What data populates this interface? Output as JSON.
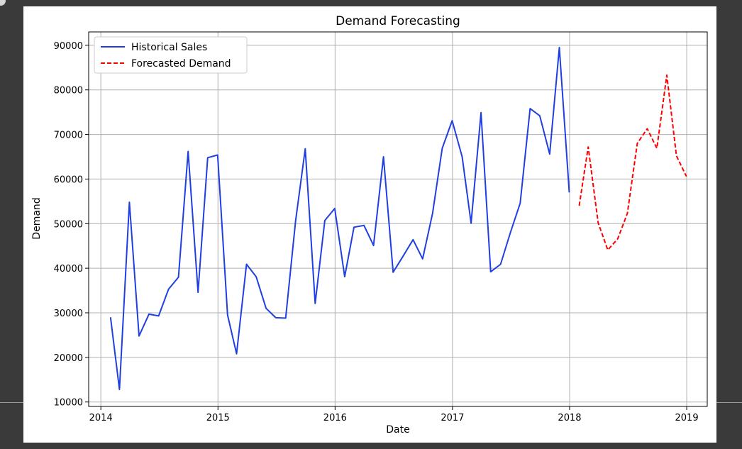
{
  "chart_data": {
    "type": "line",
    "title": "Demand Forecasting",
    "xlabel": "Date",
    "ylabel": "Demand",
    "xlim": [
      "2013-11-24",
      "2019-03-06"
    ],
    "ylim": [
      9000,
      93000
    ],
    "grid": true,
    "legend_position": "upper-left",
    "x_ticks": [
      {
        "date": "2014-01-01",
        "label": "2014"
      },
      {
        "date": "2015-01-01",
        "label": "2015"
      },
      {
        "date": "2016-01-01",
        "label": "2016"
      },
      {
        "date": "2017-01-01",
        "label": "2017"
      },
      {
        "date": "2018-01-01",
        "label": "2018"
      },
      {
        "date": "2019-01-01",
        "label": "2019"
      }
    ],
    "y_ticks": [
      {
        "value": 10000,
        "label": "10000"
      },
      {
        "value": 20000,
        "label": "20000"
      },
      {
        "value": 30000,
        "label": "30000"
      },
      {
        "value": 40000,
        "label": "40000"
      },
      {
        "value": 50000,
        "label": "50000"
      },
      {
        "value": 60000,
        "label": "60000"
      },
      {
        "value": 70000,
        "label": "70000"
      },
      {
        "value": 80000,
        "label": "80000"
      },
      {
        "value": 90000,
        "label": "90000"
      }
    ],
    "series": [
      {
        "name": "Historical Sales",
        "color": "#1f3fe0",
        "style": "solid",
        "points": [
          [
            "2014-01-31",
            29000
          ],
          [
            "2014-02-28",
            12800
          ],
          [
            "2014-03-31",
            54800
          ],
          [
            "2014-04-30",
            24800
          ],
          [
            "2014-05-31",
            29700
          ],
          [
            "2014-06-30",
            29300
          ],
          [
            "2014-07-31",
            35300
          ],
          [
            "2014-08-31",
            38000
          ],
          [
            "2014-09-30",
            66200
          ],
          [
            "2014-10-31",
            34600
          ],
          [
            "2014-11-30",
            64800
          ],
          [
            "2014-12-31",
            65400
          ],
          [
            "2015-01-31",
            29500
          ],
          [
            "2015-02-28",
            20800
          ],
          [
            "2015-03-31",
            40900
          ],
          [
            "2015-04-30",
            38100
          ],
          [
            "2015-05-31",
            31000
          ],
          [
            "2015-06-30",
            28900
          ],
          [
            "2015-07-31",
            28800
          ],
          [
            "2015-08-31",
            50600
          ],
          [
            "2015-09-30",
            66800
          ],
          [
            "2015-10-31",
            32100
          ],
          [
            "2015-11-30",
            50700
          ],
          [
            "2015-12-31",
            53400
          ],
          [
            "2016-01-31",
            38100
          ],
          [
            "2016-02-29",
            49200
          ],
          [
            "2016-03-31",
            49600
          ],
          [
            "2016-04-30",
            45100
          ],
          [
            "2016-05-31",
            65000
          ],
          [
            "2016-06-30",
            39100
          ],
          [
            "2016-07-31",
            42700
          ],
          [
            "2016-08-31",
            46400
          ],
          [
            "2016-09-30",
            42100
          ],
          [
            "2016-10-31",
            52300
          ],
          [
            "2016-11-30",
            66900
          ],
          [
            "2016-12-31",
            73100
          ],
          [
            "2017-01-31",
            65000
          ],
          [
            "2017-02-28",
            50100
          ],
          [
            "2017-03-31",
            74900
          ],
          [
            "2017-04-30",
            39200
          ],
          [
            "2017-05-31",
            40900
          ],
          [
            "2017-06-30",
            47900
          ],
          [
            "2017-07-31",
            54600
          ],
          [
            "2017-08-31",
            75800
          ],
          [
            "2017-09-30",
            74200
          ],
          [
            "2017-10-31",
            65600
          ],
          [
            "2017-11-30",
            89500
          ],
          [
            "2017-12-31",
            57000
          ]
        ]
      },
      {
        "name": "Forecasted Demand",
        "color": "#ff0000",
        "style": "dashed",
        "points": [
          [
            "2018-01-31",
            54000
          ],
          [
            "2018-02-28",
            67200
          ],
          [
            "2018-03-31",
            50200
          ],
          [
            "2018-04-30",
            44100
          ],
          [
            "2018-05-31",
            46600
          ],
          [
            "2018-06-30",
            52300
          ],
          [
            "2018-07-31",
            68000
          ],
          [
            "2018-08-31",
            71300
          ],
          [
            "2018-09-30",
            66900
          ],
          [
            "2018-10-31",
            83300
          ],
          [
            "2018-11-30",
            65200
          ],
          [
            "2018-12-31",
            60600
          ]
        ]
      }
    ]
  }
}
